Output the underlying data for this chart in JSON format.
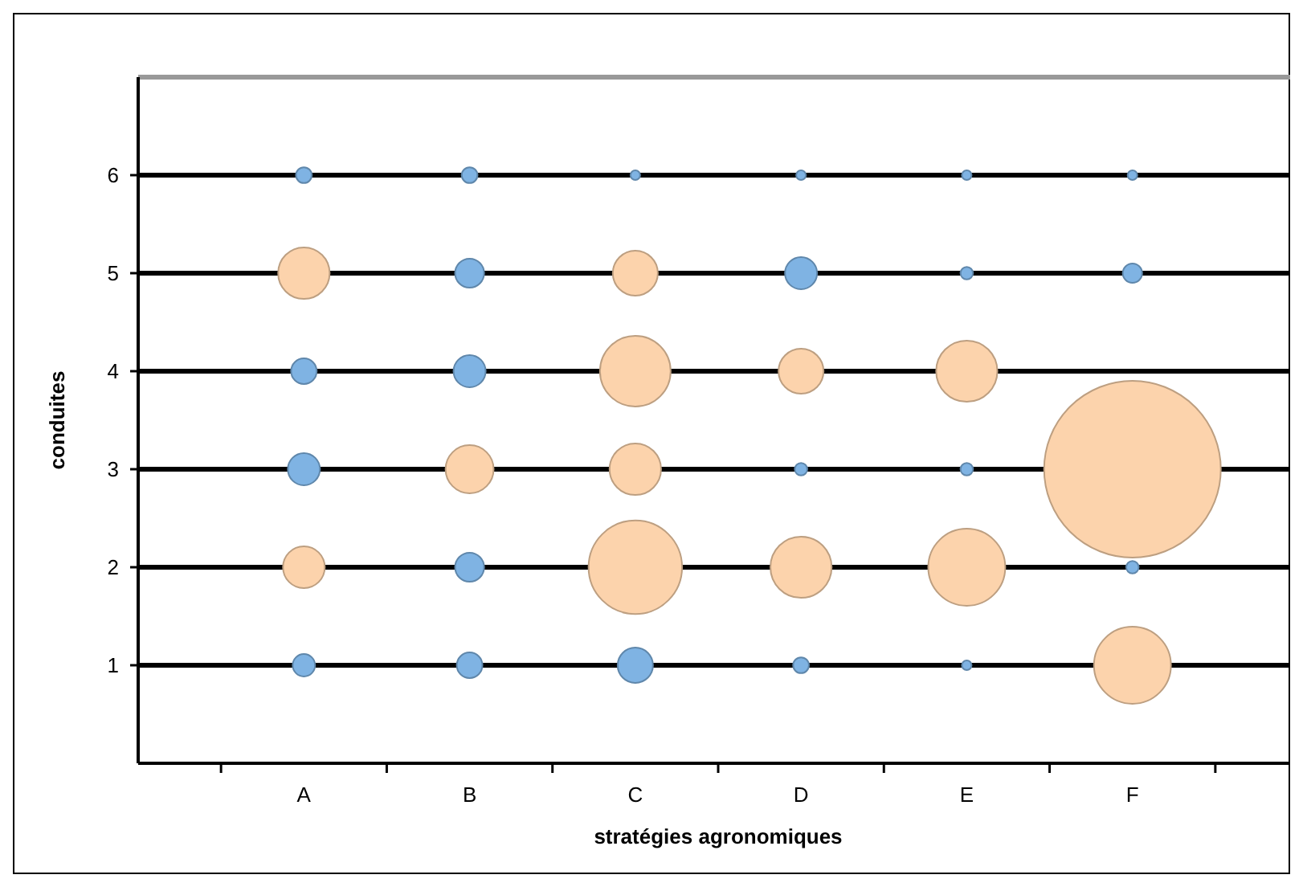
{
  "chart_data": {
    "type": "bubble",
    "xlabel": "stratégies agronomiques",
    "ylabel": "conduites",
    "categories": [
      "A",
      "B",
      "C",
      "D",
      "E",
      "F"
    ],
    "ylim": [
      0,
      7
    ],
    "yticks": [
      1,
      2,
      3,
      4,
      5,
      6
    ],
    "grid": "y",
    "series": [
      {
        "color": "#fcd3ac",
        "x": [
          "A",
          "A",
          "B",
          "C",
          "C",
          "C",
          "C",
          "D",
          "D",
          "E",
          "E",
          "F",
          "F"
        ],
        "values": [
          5,
          2,
          3,
          5,
          4,
          3,
          2,
          4,
          2,
          4,
          2,
          3,
          1
        ],
        "sizes": [
          0.085,
          0.056,
          0.074,
          0.065,
          0.16,
          0.085,
          0.28,
          0.065,
          0.12,
          0.12,
          0.19,
          1,
          0.19
        ]
      },
      {
        "color": "#7fb3e3",
        "x": [
          "A",
          "A",
          "A",
          "A",
          "B",
          "B",
          "B",
          "B",
          "B",
          "C",
          "D",
          "D",
          "D",
          "E",
          "E",
          "F",
          "F",
          "C",
          "D",
          "E",
          "F",
          "E"
        ],
        "values": [
          6,
          4,
          3,
          1,
          6,
          5,
          4,
          2,
          1,
          1,
          5,
          3,
          1,
          5,
          3,
          5,
          2,
          6,
          6,
          6,
          6,
          1
        ],
        "sizes": [
          0.008,
          0.021,
          0.033,
          0.016,
          0.008,
          0.027,
          0.033,
          0.027,
          0.021,
          0.04,
          0.033,
          0.005,
          0.008,
          0.005,
          0.005,
          0.012,
          0.005,
          0.003,
          0.003,
          0.003,
          0.003,
          0.003
        ]
      }
    ]
  }
}
